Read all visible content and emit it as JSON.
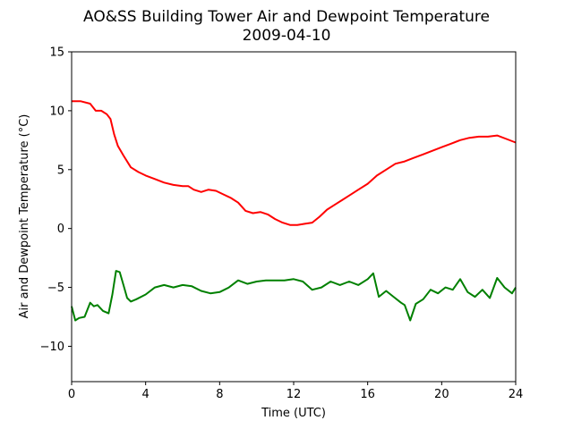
{
  "chart_data": {
    "type": "line",
    "title": "AO&SS Building Tower Air and Dewpoint Temperature",
    "subtitle": "2009-04-10",
    "xlabel": "Time (UTC)",
    "ylabel": "Air and Dewpoint Temperature (°C)",
    "xlim": [
      0,
      24
    ],
    "ylim": [
      -13,
      15
    ],
    "xticks": [
      0,
      4,
      8,
      12,
      16,
      20,
      24
    ],
    "yticks": [
      -10,
      -5,
      0,
      5,
      10,
      15
    ],
    "grid": false,
    "series": [
      {
        "color": "#ff0000",
        "x": [
          0,
          0.5,
          1.0,
          1.3,
          1.6,
          1.9,
          2.1,
          2.3,
          2.5,
          2.8,
          3.2,
          3.6,
          4.0,
          4.5,
          5.0,
          5.5,
          6.0,
          6.3,
          6.6,
          7.0,
          7.4,
          7.8,
          8.2,
          8.6,
          9.0,
          9.4,
          9.8,
          10.2,
          10.6,
          11.0,
          11.4,
          11.8,
          12.2,
          12.6,
          13.0,
          13.4,
          13.8,
          14.2,
          14.6,
          15.0,
          15.5,
          16.0,
          16.5,
          17.0,
          17.5,
          18.0,
          18.5,
          19.0,
          19.5,
          20.0,
          20.5,
          21.0,
          21.5,
          22.0,
          22.5,
          23.0,
          23.5,
          24.0
        ],
        "y": [
          10.8,
          10.8,
          10.6,
          10.0,
          10.0,
          9.7,
          9.3,
          8.0,
          7.0,
          6.2,
          5.2,
          4.8,
          4.5,
          4.2,
          3.9,
          3.7,
          3.6,
          3.6,
          3.3,
          3.1,
          3.3,
          3.2,
          2.9,
          2.6,
          2.2,
          1.5,
          1.3,
          1.4,
          1.2,
          0.8,
          0.5,
          0.3,
          0.3,
          0.4,
          0.5,
          1.0,
          1.6,
          2.0,
          2.4,
          2.8,
          3.3,
          3.8,
          4.5,
          5.0,
          5.5,
          5.7,
          6.0,
          6.3,
          6.6,
          6.9,
          7.2,
          7.5,
          7.7,
          7.8,
          7.8,
          7.9,
          7.6,
          7.3
        ]
      },
      {
        "color": "#008000",
        "x": [
          0,
          0.2,
          0.4,
          0.7,
          1.0,
          1.2,
          1.4,
          1.7,
          2.0,
          2.2,
          2.4,
          2.6,
          2.8,
          3.0,
          3.2,
          3.5,
          4.0,
          4.5,
          5.0,
          5.5,
          6.0,
          6.5,
          7.0,
          7.5,
          8.0,
          8.5,
          9.0,
          9.5,
          10.0,
          10.5,
          11.0,
          11.5,
          12.0,
          12.5,
          13.0,
          13.5,
          14.0,
          14.5,
          15.0,
          15.5,
          16.0,
          16.3,
          16.6,
          17.0,
          17.4,
          17.8,
          18.0,
          18.3,
          18.6,
          19.0,
          19.4,
          19.8,
          20.2,
          20.6,
          21.0,
          21.4,
          21.8,
          22.2,
          22.6,
          23.0,
          23.4,
          23.8,
          24.0
        ],
        "y": [
          -6.6,
          -7.8,
          -7.6,
          -7.5,
          -6.3,
          -6.6,
          -6.5,
          -7.0,
          -7.2,
          -5.6,
          -3.6,
          -3.7,
          -4.8,
          -5.9,
          -6.2,
          -6.0,
          -5.6,
          -5.0,
          -4.8,
          -5.0,
          -4.8,
          -4.9,
          -5.3,
          -5.5,
          -5.4,
          -5.0,
          -4.4,
          -4.7,
          -4.5,
          -4.4,
          -4.4,
          -4.4,
          -4.3,
          -4.5,
          -5.2,
          -5.0,
          -4.5,
          -4.8,
          -4.5,
          -4.8,
          -4.3,
          -3.8,
          -5.8,
          -5.3,
          -5.8,
          -6.3,
          -6.5,
          -7.8,
          -6.4,
          -6.0,
          -5.2,
          -5.5,
          -5.0,
          -5.2,
          -4.3,
          -5.4,
          -5.8,
          -5.2,
          -5.9,
          -4.2,
          -5.0,
          -5.5,
          -5.0
        ]
      }
    ]
  }
}
